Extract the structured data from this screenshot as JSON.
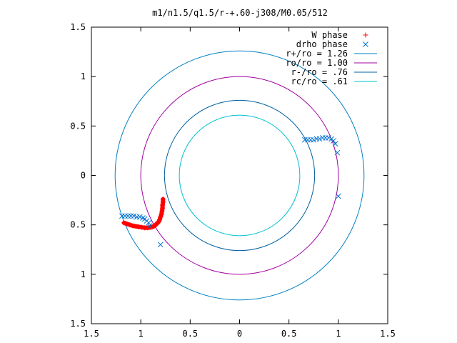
{
  "chart_data": {
    "type": "scatter",
    "title": "m1/n1.5/q1.5/r-+.60-j308/M0.05/512",
    "xlim": [
      -1.5,
      1.5
    ],
    "ylim": [
      -1.5,
      1.5
    ],
    "xticks": [
      "1.5",
      "1",
      "0.5",
      "0",
      "0.5",
      "1",
      "1.5"
    ],
    "yticks": [
      "1.5",
      "1",
      "0.5",
      "0",
      "0.5",
      "1",
      "1.5"
    ],
    "tick_values": [
      -1.5,
      -1,
      -0.5,
      0,
      0.5,
      1,
      1.5
    ],
    "grid": false,
    "legend_position": "top-right",
    "circles": [
      {
        "name": "r+/ro = 1.26",
        "radius": 1.26,
        "color": "#0080c0"
      },
      {
        "name": "ro/ro = 1.00",
        "radius": 1.0,
        "color": "#a000a0"
      },
      {
        "name": "r-/ro = .76",
        "radius": 0.76,
        "color": "#0060a0"
      },
      {
        "name": "rc/ro = .61",
        "radius": 0.61,
        "color": "#00c0d0"
      }
    ],
    "series": [
      {
        "name": "W phase",
        "marker": "+",
        "color": "#ff0000",
        "points": [
          [
            -1.17,
            -0.48
          ],
          [
            -1.14,
            -0.49
          ],
          [
            -1.11,
            -0.5
          ],
          [
            -1.08,
            -0.51
          ],
          [
            -1.05,
            -0.515
          ],
          [
            -1.02,
            -0.52
          ],
          [
            -0.99,
            -0.525
          ],
          [
            -0.96,
            -0.53
          ],
          [
            -0.93,
            -0.53
          ],
          [
            -0.9,
            -0.525
          ],
          [
            -0.88,
            -0.52
          ],
          [
            -0.86,
            -0.51
          ],
          [
            -0.84,
            -0.49
          ],
          [
            -0.82,
            -0.47
          ],
          [
            -0.81,
            -0.45
          ],
          [
            -0.8,
            -0.42
          ],
          [
            -0.79,
            -0.39
          ],
          [
            -0.785,
            -0.36
          ],
          [
            -0.78,
            -0.33
          ],
          [
            -0.78,
            -0.3
          ],
          [
            -0.775,
            -0.27
          ],
          [
            -0.775,
            -0.24
          ]
        ]
      },
      {
        "name": "drho phase",
        "marker": "x",
        "color": "#0070d0",
        "points": [
          [
            -1.19,
            -0.41
          ],
          [
            -1.16,
            -0.41
          ],
          [
            -1.13,
            -0.41
          ],
          [
            -1.1,
            -0.41
          ],
          [
            -1.07,
            -0.41
          ],
          [
            -1.04,
            -0.42
          ],
          [
            -1.01,
            -0.42
          ],
          [
            -0.98,
            -0.43
          ],
          [
            -0.96,
            -0.44
          ],
          [
            -0.94,
            -0.46
          ],
          [
            -0.92,
            -0.48
          ],
          [
            -0.91,
            -0.51
          ],
          [
            -0.8,
            -0.7
          ],
          [
            0.66,
            0.36
          ],
          [
            0.69,
            0.36
          ],
          [
            0.72,
            0.36
          ],
          [
            0.75,
            0.36
          ],
          [
            0.78,
            0.37
          ],
          [
            0.81,
            0.37
          ],
          [
            0.84,
            0.38
          ],
          [
            0.87,
            0.38
          ],
          [
            0.9,
            0.38
          ],
          [
            0.93,
            0.37
          ],
          [
            0.95,
            0.35
          ],
          [
            0.97,
            0.32
          ],
          [
            0.99,
            0.23
          ],
          [
            1.0,
            -0.21
          ]
        ]
      }
    ]
  }
}
